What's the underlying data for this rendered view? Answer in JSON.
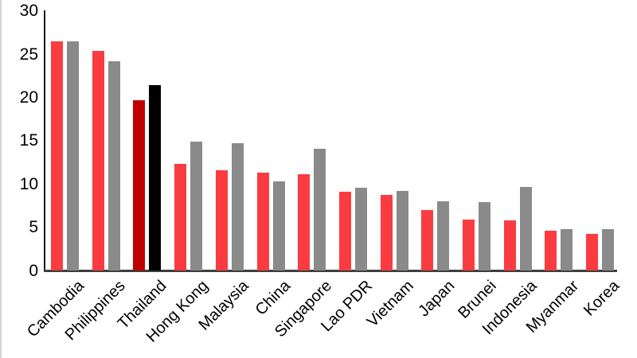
{
  "chart_data": {
    "type": "bar",
    "title": "",
    "categories": [
      "Cambodia",
      "Philippines",
      "Thailand",
      "Hong Kong",
      "Malaysia",
      "China",
      "Singapore",
      "Lao PDR",
      "Vietnam",
      "Japan",
      "Brunei",
      "Indonesia",
      "Myanmar",
      "Korea"
    ],
    "series": [
      {
        "name": "red-series",
        "color": "#fa3c40",
        "values": [
          26.5,
          25.4,
          19.7,
          12.3,
          11.6,
          11.3,
          11.1,
          9.1,
          8.7,
          7.0,
          5.9,
          5.8,
          4.6,
          4.2
        ]
      },
      {
        "name": "gray-series",
        "color": "#8a8a8a",
        "values": [
          26.5,
          24.2,
          21.4,
          14.9,
          14.7,
          10.3,
          14.1,
          9.6,
          9.2,
          8.0,
          7.9,
          9.7,
          4.8,
          4.8
        ]
      }
    ],
    "highlight": {
      "category": "Thailand",
      "colors": [
        "#c00000",
        "#000000"
      ]
    },
    "y_axis": {
      "ticks": [
        0,
        5,
        10,
        15,
        20,
        25,
        30
      ],
      "min": 0,
      "max": 30,
      "label": ""
    },
    "xlabel": "",
    "ylabel": "",
    "grid": false,
    "legend": false,
    "axis_colors": {
      "y_axis_line": "#1a1a1a",
      "x_axis_line": "#3e3e3e",
      "tick_text": "#000000"
    }
  }
}
